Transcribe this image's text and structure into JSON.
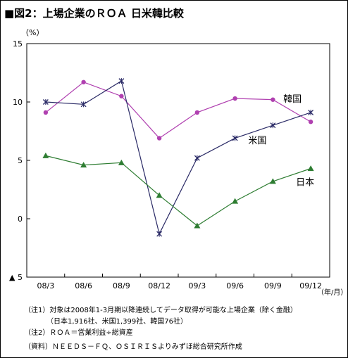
{
  "title": "■図2：上場企業のＲＯＡ 日米韓比較",
  "chart_data": {
    "type": "line",
    "ylabel": "（%）",
    "xunit": "（年/月）",
    "ylim": [
      -5,
      15
    ],
    "ytick_values": [
      15,
      10,
      5,
      0,
      -5
    ],
    "ytick_labels": [
      "15",
      "10",
      "5",
      "0",
      "▲ 5"
    ],
    "categories": [
      "08/3",
      "08/6",
      "08/9",
      "08/12",
      "09/3",
      "09/6",
      "09/9",
      "09/12"
    ],
    "series": [
      {
        "name": "韓国",
        "color": "#b040b0",
        "marker": "circle",
        "values": [
          9.1,
          11.7,
          10.5,
          6.9,
          9.1,
          10.3,
          10.2,
          8.3
        ]
      },
      {
        "name": "米国",
        "color": "#2a2a66",
        "marker": "x",
        "values": [
          10.0,
          9.8,
          11.8,
          -1.3,
          5.2,
          6.9,
          8.0,
          9.1
        ]
      },
      {
        "name": "日本",
        "color": "#2e7d32",
        "marker": "triangle",
        "values": [
          5.4,
          4.6,
          4.8,
          2.0,
          -0.6,
          1.5,
          3.2,
          4.3
        ]
      }
    ],
    "grid": false
  },
  "notes": [
    "（注1）対象は2008年1-3月期以降連続してデータ取得が可能な上場企業（除く金融）",
    "（日本1,916社、米国1,399社、韓国76社）",
    "（注2）ＲＯＡ＝営業利益÷総資産",
    "（資料）ＮＥＥＤＳ－ＦＱ、ＯＳＩＲＩＳよりみずほ総合研究所作成"
  ]
}
